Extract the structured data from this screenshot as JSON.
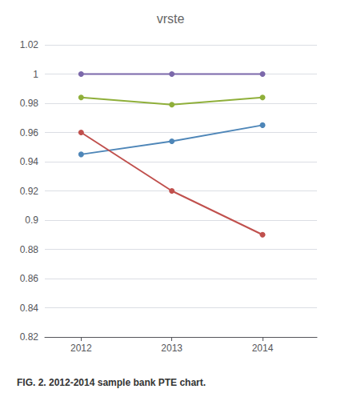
{
  "chart_data": {
    "type": "line",
    "title": "vrste",
    "caption": "FIG. 2. 2012-2014 sample bank PTE chart.",
    "x": [
      2012,
      2013,
      2014
    ],
    "series": [
      {
        "color": "#7B68AA",
        "values": [
          1.0,
          1.0,
          1.0
        ]
      },
      {
        "color": "#8FAF3A",
        "values": [
          0.984,
          0.979,
          0.984
        ]
      },
      {
        "color": "#4E86B8",
        "values": [
          0.945,
          0.954,
          0.965
        ]
      },
      {
        "color": "#C0504D",
        "values": [
          0.96,
          0.92,
          0.89
        ]
      }
    ],
    "xlim": [
      2011.6,
      2014.6
    ],
    "xticks": [
      2012,
      2013,
      2014
    ],
    "ylim": [
      0.82,
      1.02
    ],
    "yticks": [
      0.82,
      0.84,
      0.86,
      0.88,
      0.9,
      0.92,
      0.94,
      0.96,
      0.98,
      1,
      1.02
    ],
    "grid": true,
    "marker": "circle"
  }
}
